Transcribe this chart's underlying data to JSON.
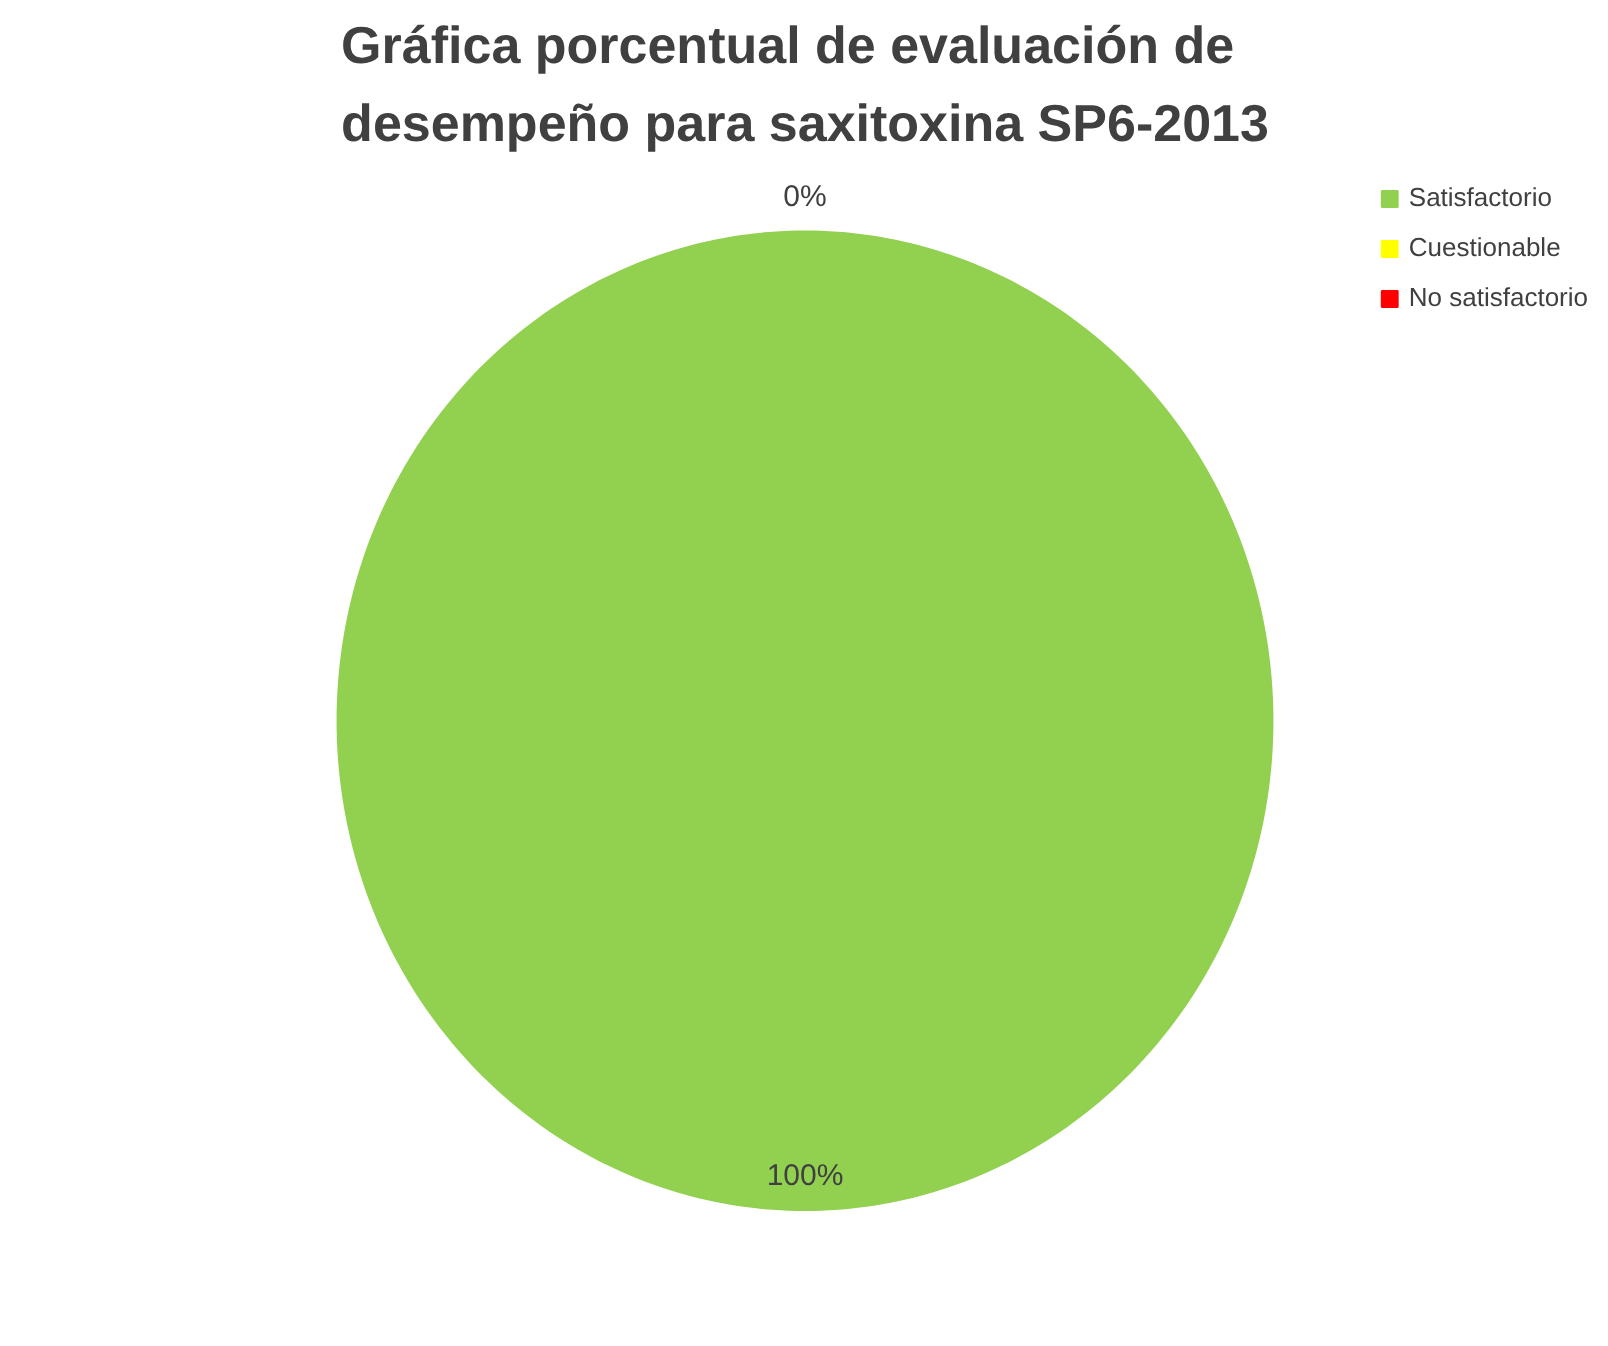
{
  "chart_data": {
    "type": "pie",
    "title": "Gráfica porcentual de evaluación de desempeño para saxitoxina SP6-2013",
    "categories": [
      "Satisfactorio",
      "Cuestionable",
      "No satisfactorio"
    ],
    "values": [
      100,
      0,
      0
    ],
    "colors": [
      "#92d050",
      "#ffff00",
      "#ff0000"
    ],
    "value_labels": [
      "100%",
      "0%",
      null
    ],
    "legend": "top right"
  }
}
